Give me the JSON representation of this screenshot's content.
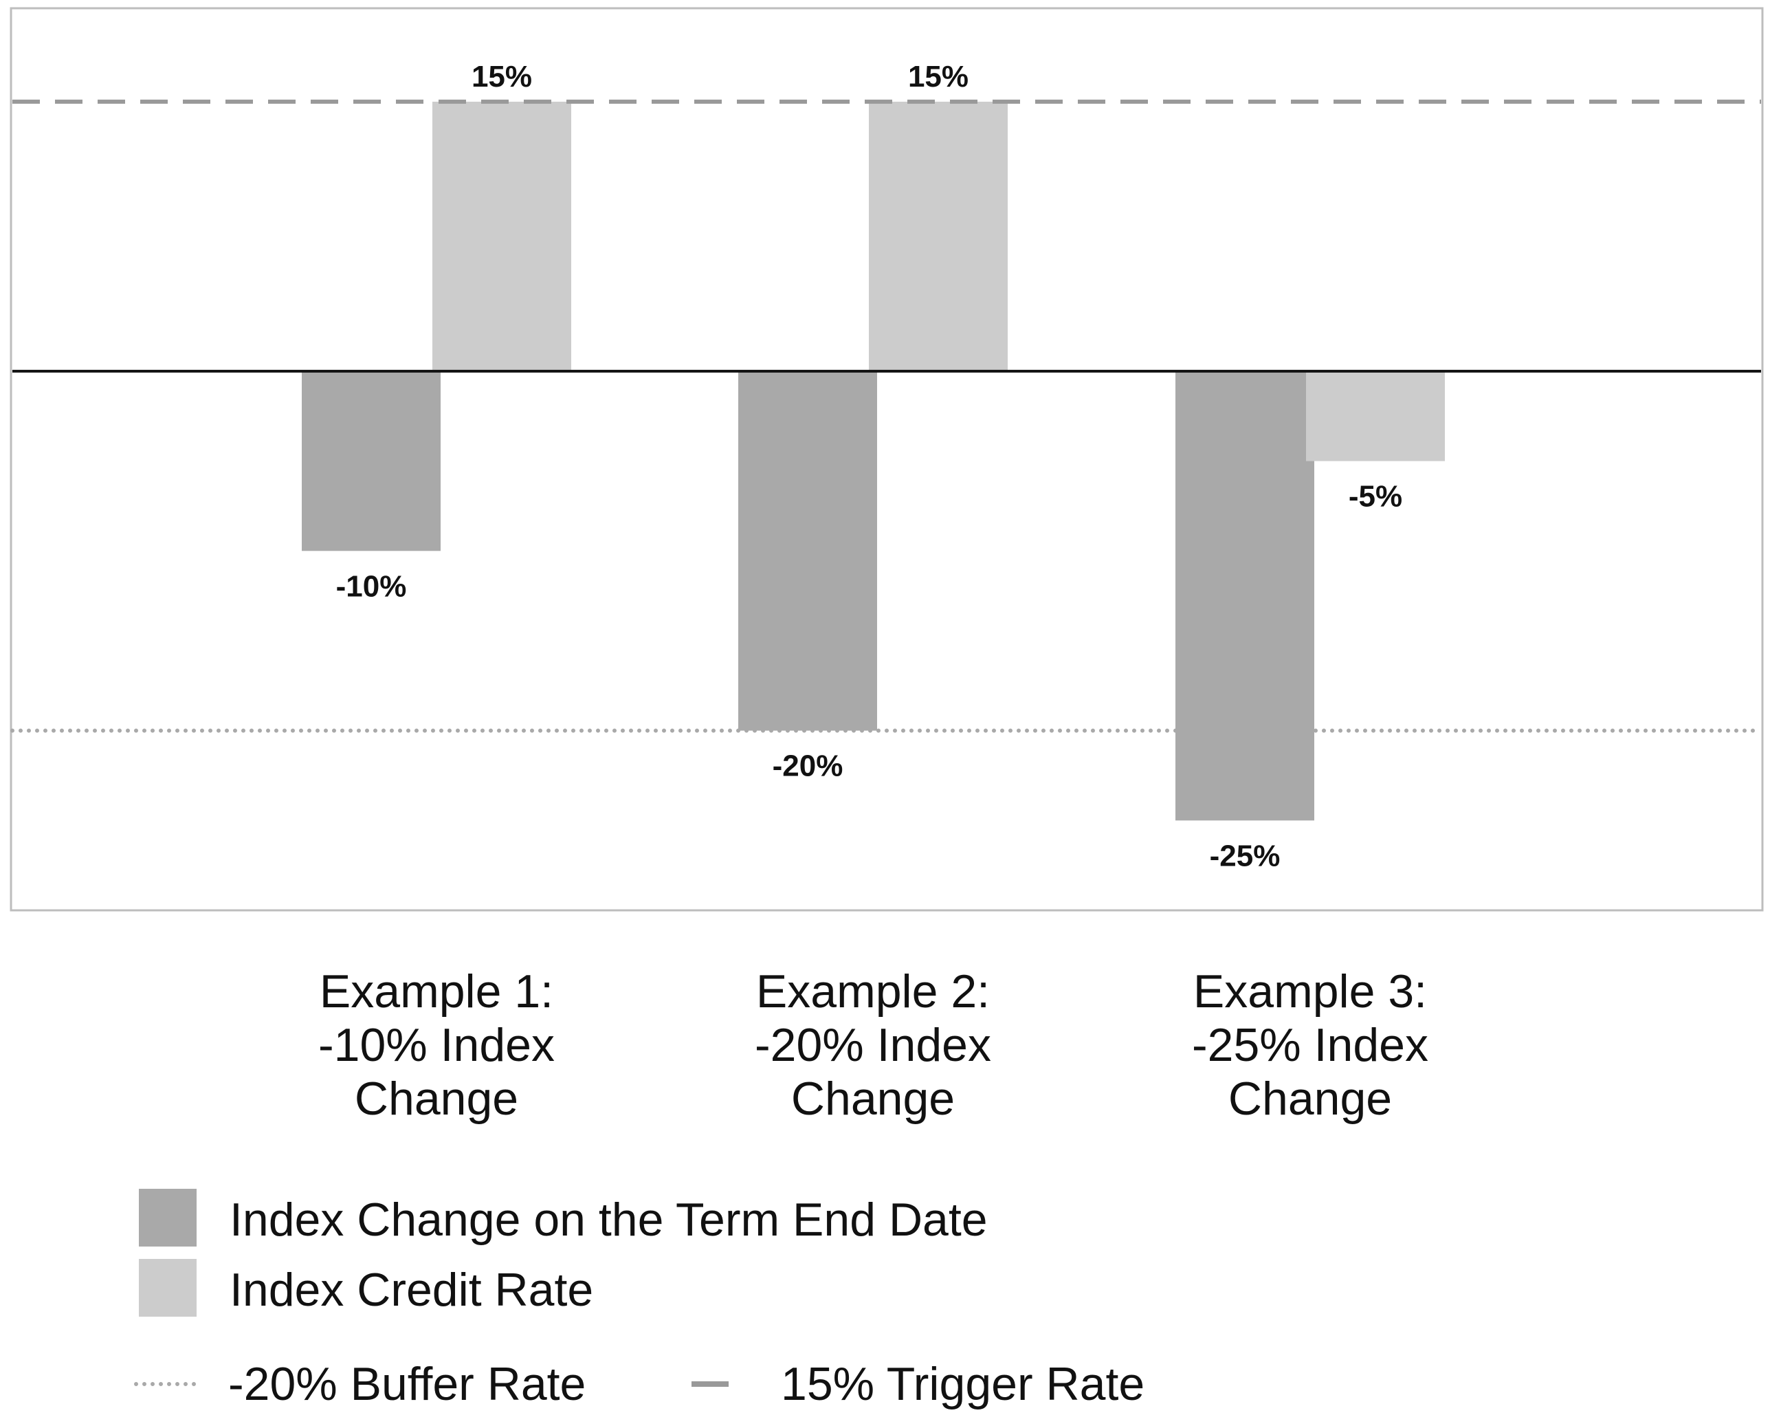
{
  "chart_data": {
    "type": "bar",
    "categories": [
      [
        "Example 1:",
        "-10% Index",
        "Change"
      ],
      [
        "Example 2:",
        "-20% Index",
        "Change"
      ],
      [
        "Example 3:",
        "-25% Index",
        "Change"
      ]
    ],
    "series": [
      {
        "name": "Index Change on the Term End Date",
        "values": [
          -10,
          -20,
          -25
        ],
        "labels": [
          "-10%",
          "-20%",
          "-25%"
        ],
        "color": "#a9a9a9"
      },
      {
        "name": "Index Credit Rate",
        "values": [
          15,
          15,
          -5
        ],
        "labels": [
          "15%",
          "15%",
          "-5%"
        ],
        "color": "#cccccc"
      }
    ],
    "reference_lines": [
      {
        "name": "-20% Buffer Rate",
        "value": -20,
        "style": "dotted",
        "color": "#a9a9a9"
      },
      {
        "name": "15% Trigger Rate",
        "value": 15,
        "style": "dashed",
        "color": "#999999"
      }
    ],
    "ylim": [
      -30,
      20.2
    ],
    "grid": false,
    "legend_position": "bottom-left"
  }
}
